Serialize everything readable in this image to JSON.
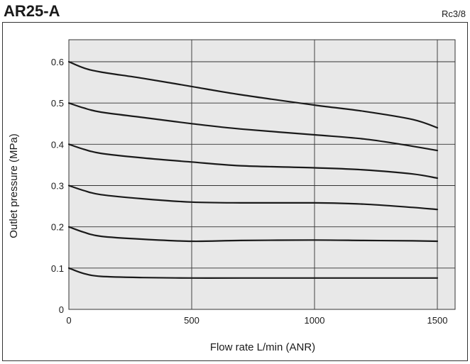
{
  "header": {
    "title": "AR25-A",
    "port_size": "Rc3/8"
  },
  "chart_data": {
    "type": "line",
    "xlabel": "Flow rate L/min (ANR)",
    "ylabel": "Outlet pressure (MPa)",
    "xlim": [
      0,
      1500
    ],
    "ylim": [
      0,
      0.6
    ],
    "x_ticks": [
      "0",
      "500",
      "1000",
      "1500"
    ],
    "y_ticks": [
      "0",
      "0.1",
      "0.2",
      "0.3",
      "0.4",
      "0.5",
      "0.6"
    ],
    "grid": true,
    "plot_background": "#e8e8e8",
    "line_color": "#1a1a1a",
    "series": [
      {
        "x": [
          0,
          60,
          130,
          300,
          500,
          700,
          1000,
          1200,
          1400,
          1500
        ],
        "y": [
          0.6,
          0.585,
          0.575,
          0.56,
          0.54,
          0.52,
          0.495,
          0.48,
          0.46,
          0.44
        ]
      },
      {
        "x": [
          0,
          60,
          130,
          300,
          500,
          700,
          1000,
          1200,
          1350,
          1500
        ],
        "y": [
          0.5,
          0.488,
          0.478,
          0.465,
          0.45,
          0.437,
          0.423,
          0.413,
          0.4,
          0.385
        ]
      },
      {
        "x": [
          0,
          60,
          130,
          300,
          500,
          700,
          1000,
          1200,
          1400,
          1500
        ],
        "y": [
          0.4,
          0.388,
          0.378,
          0.367,
          0.357,
          0.348,
          0.343,
          0.338,
          0.328,
          0.318
        ]
      },
      {
        "x": [
          0,
          60,
          130,
          300,
          500,
          700,
          1000,
          1200,
          1400,
          1500
        ],
        "y": [
          0.3,
          0.288,
          0.278,
          0.268,
          0.26,
          0.258,
          0.258,
          0.255,
          0.247,
          0.242
        ]
      },
      {
        "x": [
          0,
          60,
          130,
          300,
          500,
          700,
          1000,
          1200,
          1400,
          1500
        ],
        "y": [
          0.2,
          0.187,
          0.177,
          0.17,
          0.165,
          0.167,
          0.168,
          0.167,
          0.166,
          0.165
        ]
      },
      {
        "x": [
          0,
          60,
          130,
          300,
          500,
          700,
          1000,
          1200,
          1400,
          1500
        ],
        "y": [
          0.1,
          0.087,
          0.08,
          0.077,
          0.076,
          0.076,
          0.076,
          0.076,
          0.076,
          0.076
        ]
      }
    ]
  }
}
